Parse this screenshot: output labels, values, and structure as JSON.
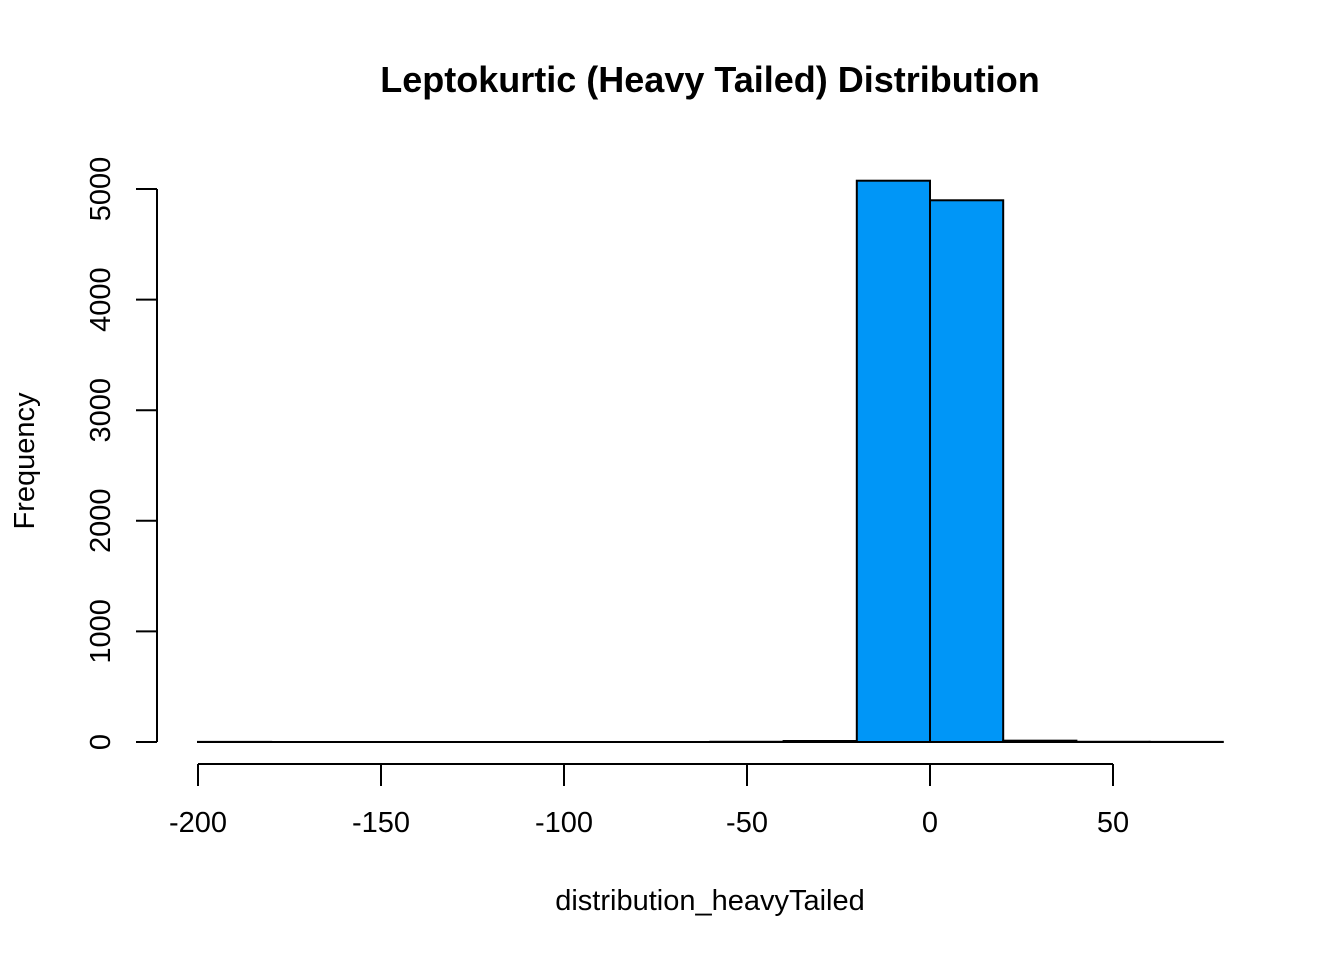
{
  "chart_data": {
    "type": "bar",
    "title": "Leptokurtic (Heavy Tailed) Distribution",
    "xlabel": "distribution_heavyTailed",
    "ylabel": "Frequency",
    "xlim": [
      -200,
      80
    ],
    "ylim": [
      0,
      5200
    ],
    "x_ticks": [
      -200,
      -150,
      -100,
      -50,
      0,
      50
    ],
    "x_tick_labels": [
      "-200",
      "-150",
      "-100",
      "-50",
      "0",
      "50"
    ],
    "y_ticks": [
      0,
      1000,
      2000,
      3000,
      4000,
      5000
    ],
    "y_tick_labels": [
      "0",
      "1000",
      "2000",
      "3000",
      "4000",
      "5000"
    ],
    "bins": [
      {
        "start": -200,
        "end": -180,
        "count": 1
      },
      {
        "start": -180,
        "end": -160,
        "count": 0
      },
      {
        "start": -160,
        "end": -140,
        "count": 0
      },
      {
        "start": -140,
        "end": -120,
        "count": 0
      },
      {
        "start": -120,
        "end": -100,
        "count": 0
      },
      {
        "start": -100,
        "end": -80,
        "count": 0
      },
      {
        "start": -80,
        "end": -60,
        "count": 0
      },
      {
        "start": -60,
        "end": -40,
        "count": 2
      },
      {
        "start": -40,
        "end": -20,
        "count": 9
      },
      {
        "start": -20,
        "end": 0,
        "count": 5075
      },
      {
        "start": 0,
        "end": 20,
        "count": 4898
      },
      {
        "start": 20,
        "end": 40,
        "count": 12
      },
      {
        "start": 40,
        "end": 60,
        "count": 2
      },
      {
        "start": 60,
        "end": 80,
        "count": 1
      }
    ],
    "bar_color": "#0096f7",
    "grid": false,
    "legend": "none"
  }
}
